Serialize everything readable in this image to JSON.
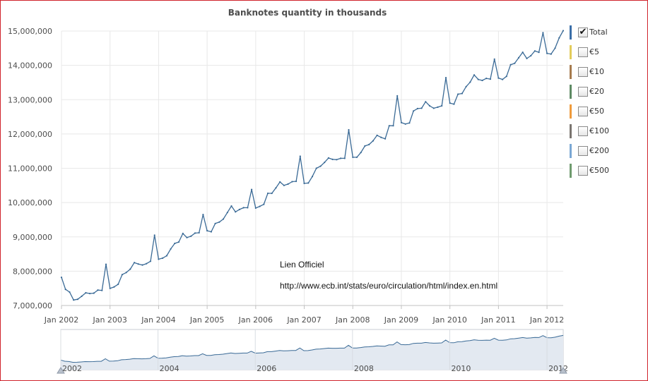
{
  "chart_data": {
    "type": "line",
    "title": "Banknotes quantity in thousands",
    "xlabel": "",
    "ylabel": "",
    "x_tick_labels": [
      "Jan 2002",
      "Jan 2003",
      "Jan 2004",
      "Jan 2005",
      "Jan 2006",
      "Jan 2007",
      "Jan 2008",
      "Jan 2009",
      "Jan 2010",
      "Jan 2011",
      "Jan 2012"
    ],
    "y_tick_labels": [
      "7,000,000",
      "8,000,000",
      "9,000,000",
      "10,000,000",
      "11,000,000",
      "12,000,000",
      "13,000,000",
      "14,000,000",
      "15,000,000"
    ],
    "ylim": [
      7000000,
      15000000
    ],
    "xlim": [
      "2002-01",
      "2012-05"
    ],
    "grid": true,
    "legend_position": "right",
    "x": [
      "2002-01",
      "2002-02",
      "2002-03",
      "2002-04",
      "2002-05",
      "2002-06",
      "2002-07",
      "2002-08",
      "2002-09",
      "2002-10",
      "2002-11",
      "2002-12",
      "2003-01",
      "2003-02",
      "2003-03",
      "2003-04",
      "2003-05",
      "2003-06",
      "2003-07",
      "2003-08",
      "2003-09",
      "2003-10",
      "2003-11",
      "2003-12",
      "2004-01",
      "2004-02",
      "2004-03",
      "2004-04",
      "2004-05",
      "2004-06",
      "2004-07",
      "2004-08",
      "2004-09",
      "2004-10",
      "2004-11",
      "2004-12",
      "2005-01",
      "2005-02",
      "2005-03",
      "2005-04",
      "2005-05",
      "2005-06",
      "2005-07",
      "2005-08",
      "2005-09",
      "2005-10",
      "2005-11",
      "2005-12",
      "2006-01",
      "2006-02",
      "2006-03",
      "2006-04",
      "2006-05",
      "2006-06",
      "2006-07",
      "2006-08",
      "2006-09",
      "2006-10",
      "2006-11",
      "2006-12",
      "2007-01",
      "2007-02",
      "2007-03",
      "2007-04",
      "2007-05",
      "2007-06",
      "2007-07",
      "2007-08",
      "2007-09",
      "2007-10",
      "2007-11",
      "2007-12",
      "2008-01",
      "2008-02",
      "2008-03",
      "2008-04",
      "2008-05",
      "2008-06",
      "2008-07",
      "2008-08",
      "2008-09",
      "2008-10",
      "2008-11",
      "2008-12",
      "2009-01",
      "2009-02",
      "2009-03",
      "2009-04",
      "2009-05",
      "2009-06",
      "2009-07",
      "2009-08",
      "2009-09",
      "2009-10",
      "2009-11",
      "2009-12",
      "2010-01",
      "2010-02",
      "2010-03",
      "2010-04",
      "2010-05",
      "2010-06",
      "2010-07",
      "2010-08",
      "2010-09",
      "2010-10",
      "2010-11",
      "2010-12",
      "2011-01",
      "2011-02",
      "2011-03",
      "2011-04",
      "2011-05",
      "2011-06",
      "2011-07",
      "2011-08",
      "2011-09",
      "2011-10",
      "2011-11",
      "2011-12",
      "2012-01",
      "2012-02",
      "2012-03",
      "2012-04",
      "2012-05"
    ],
    "series": [
      {
        "name": "Total",
        "color": "#3a6a96",
        "values": [
          7820000,
          7470000,
          7390000,
          7160000,
          7180000,
          7270000,
          7370000,
          7350000,
          7360000,
          7450000,
          7440000,
          8200000,
          7500000,
          7540000,
          7620000,
          7900000,
          7960000,
          8060000,
          8250000,
          8210000,
          8180000,
          8220000,
          8290000,
          9050000,
          8350000,
          8380000,
          8450000,
          8650000,
          8810000,
          8850000,
          9100000,
          8980000,
          9020000,
          9110000,
          9120000,
          9650000,
          9180000,
          9150000,
          9390000,
          9430000,
          9520000,
          9710000,
          9900000,
          9730000,
          9800000,
          9850000,
          9850000,
          10380000,
          9840000,
          9890000,
          9950000,
          10270000,
          10270000,
          10430000,
          10600000,
          10500000,
          10540000,
          10610000,
          10620000,
          11350000,
          10560000,
          10570000,
          10760000,
          11000000,
          11060000,
          11170000,
          11300000,
          11260000,
          11250000,
          11290000,
          11290000,
          12120000,
          11320000,
          11320000,
          11460000,
          11650000,
          11690000,
          11800000,
          11960000,
          11900000,
          11860000,
          12240000,
          12240000,
          13110000,
          12330000,
          12290000,
          12320000,
          12670000,
          12740000,
          12750000,
          12940000,
          12820000,
          12750000,
          12780000,
          12820000,
          13640000,
          12900000,
          12870000,
          13160000,
          13180000,
          13380000,
          13510000,
          13720000,
          13590000,
          13560000,
          13620000,
          13600000,
          14180000,
          13630000,
          13590000,
          13680000,
          14020000,
          14060000,
          14220000,
          14380000,
          14200000,
          14280000,
          14420000,
          14380000,
          14950000,
          14350000,
          14330000,
          14500000,
          14800000,
          15010000
        ]
      }
    ]
  },
  "legend": [
    {
      "label": "Total",
      "color": "#3a6ea8",
      "checked": true,
      "check": "✔"
    },
    {
      "label": "€5",
      "color": "#e3cc5b",
      "checked": false,
      "check": ""
    },
    {
      "label": "€10",
      "color": "#a67b4e",
      "checked": false,
      "check": ""
    },
    {
      "label": "€20",
      "color": "#5e8a63",
      "checked": false,
      "check": ""
    },
    {
      "label": "€50",
      "color": "#ef9b3c",
      "checked": false,
      "check": ""
    },
    {
      "label": "€100",
      "color": "#7a7570",
      "checked": false,
      "check": ""
    },
    {
      "label": "€200",
      "color": "#7aa7d4",
      "checked": false,
      "check": ""
    },
    {
      "label": "€500",
      "color": "#6f9b6e",
      "checked": false,
      "check": ""
    }
  ],
  "navigator": {
    "labels": [
      "2002",
      "2004",
      "2006",
      "2008",
      "2010",
      "2012"
    ],
    "fill_color": "#e3e9f1",
    "line_color": "#3a6a96"
  },
  "annotation": {
    "title": "Lien Officiel",
    "url": "http://www.ecb.int/stats/euro/circulation/html/index.en.html"
  },
  "colors": {
    "frame": "#d0232b",
    "grid": "#e8e8e8",
    "axis": "#c0c0c0",
    "text": "#4d4d4d"
  }
}
